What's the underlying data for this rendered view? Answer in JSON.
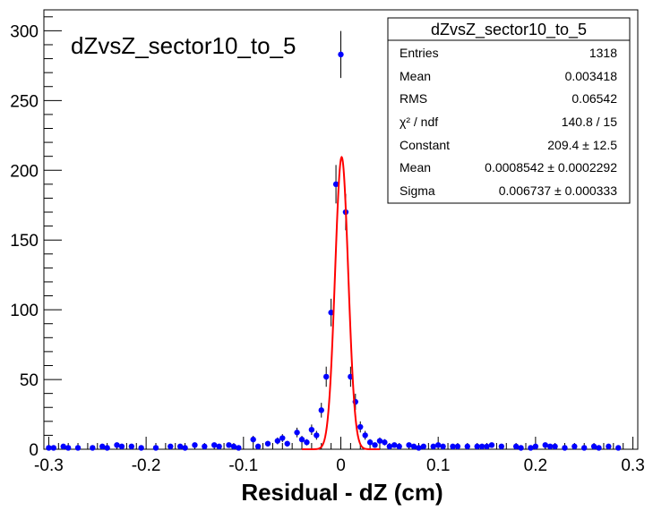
{
  "chart_data": {
    "type": "scatter",
    "title": "dZvsZ_sector10_to_5",
    "xlabel": "Residual - dZ (cm)",
    "ylabel": "",
    "xlim": [
      -0.305,
      0.305
    ],
    "ylim": [
      0,
      315
    ],
    "grid": false,
    "xticks": [
      -0.3,
      -0.2,
      -0.1,
      0,
      0.1,
      0.2,
      0.3
    ],
    "xtick_labels": [
      "-0.3",
      "-0.2",
      "-0.1",
      "0",
      "0.1",
      "0.2",
      "0.3"
    ],
    "yticks": [
      0,
      50,
      100,
      150,
      200,
      250,
      300
    ],
    "ytick_labels": [
      "0",
      "50",
      "100",
      "150",
      "200",
      "250",
      "300"
    ],
    "series": [
      {
        "kind": "histogram-points",
        "color": "#0000ff",
        "x": [
          -0.3,
          -0.295,
          -0.285,
          -0.28,
          -0.27,
          -0.255,
          -0.245,
          -0.24,
          -0.23,
          -0.225,
          -0.215,
          -0.205,
          -0.19,
          -0.175,
          -0.165,
          -0.16,
          -0.15,
          -0.14,
          -0.13,
          -0.125,
          -0.115,
          -0.11,
          -0.105,
          -0.09,
          -0.085,
          -0.075,
          -0.065,
          -0.06,
          -0.055,
          -0.045,
          -0.04,
          -0.035,
          -0.03,
          -0.025,
          -0.02,
          -0.015,
          -0.01,
          -0.005,
          0,
          0.005,
          0.01,
          0.015,
          0.02,
          0.025,
          0.03,
          0.035,
          0.04,
          0.045,
          0.05,
          0.055,
          0.06,
          0.07,
          0.075,
          0.08,
          0.085,
          0.095,
          0.1,
          0.105,
          0.115,
          0.12,
          0.13,
          0.14,
          0.145,
          0.15,
          0.155,
          0.165,
          0.18,
          0.185,
          0.195,
          0.2,
          0.21,
          0.215,
          0.22,
          0.23,
          0.24,
          0.25,
          0.26,
          0.265,
          0.275,
          0.285
        ],
        "y": [
          1,
          1,
          2,
          1,
          1,
          1,
          2,
          1,
          3,
          2,
          2,
          1,
          1,
          2,
          2,
          1,
          3,
          2,
          3,
          2,
          3,
          2,
          1,
          7,
          2,
          4,
          6,
          8,
          4,
          12,
          7,
          5,
          14,
          10,
          28,
          52,
          98,
          190,
          283,
          170,
          52,
          34,
          16,
          10,
          5,
          3,
          6,
          5,
          2,
          3,
          2,
          3,
          2,
          1,
          2,
          2,
          3,
          2,
          2,
          2,
          2,
          2,
          2,
          2,
          3,
          2,
          2,
          1,
          1,
          2,
          3,
          2,
          2,
          1,
          2,
          1,
          2,
          1,
          2,
          1
        ]
      },
      {
        "kind": "fit",
        "name": "gaus",
        "color": "#ff0000",
        "constant": 209.4,
        "mean": 0.0008542,
        "sigma": 0.006737
      }
    ]
  },
  "stats_box": {
    "title": "dZvsZ_sector10_to_5",
    "rows": [
      {
        "label": "Entries",
        "value": "1318"
      },
      {
        "label": "Mean",
        "value": "0.003418"
      },
      {
        "label": "RMS",
        "value": "0.06542"
      },
      {
        "label": "χ² / ndf",
        "value": "140.8 / 15"
      },
      {
        "label": "Constant",
        "value": "209.4 ± 12.5"
      },
      {
        "label": "Mean",
        "value": "0.0008542 ± 0.0002292"
      },
      {
        "label": "Sigma",
        "value": "0.006737 ± 0.000333"
      }
    ]
  }
}
